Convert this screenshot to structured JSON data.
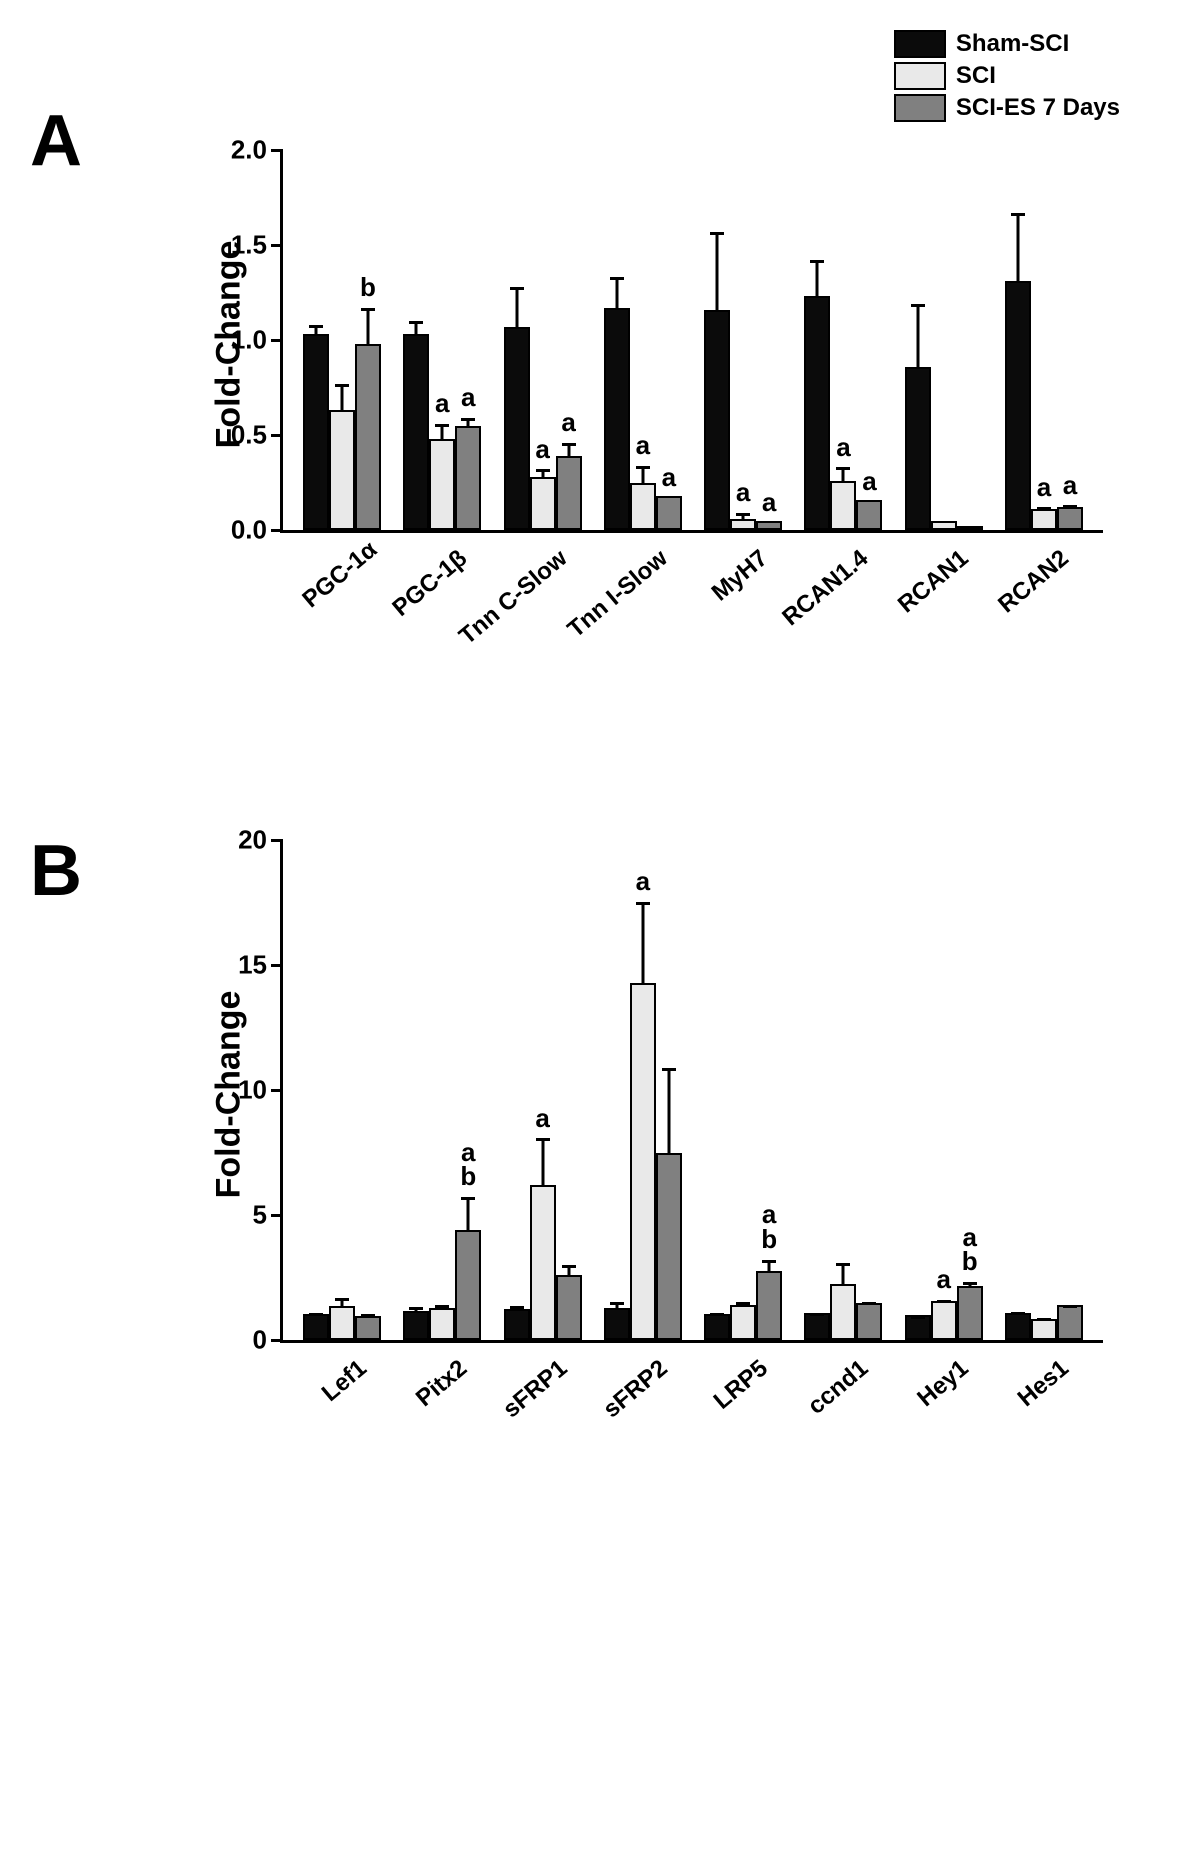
{
  "legend": {
    "items": [
      {
        "label": "Sham-SCI",
        "color": "#0b0b0b"
      },
      {
        "label": "SCI",
        "color": "#e9e9e9"
      },
      {
        "label": "SCI-ES 7 Days",
        "color": "#808080"
      }
    ]
  },
  "panelA": {
    "label": "A",
    "y_title": "Fold-Change",
    "ymax": 2.0,
    "yticks": [
      0.0,
      0.5,
      1.0,
      1.5,
      2.0
    ],
    "ytick_labels": [
      "0.0",
      "0.5",
      "1.0",
      "1.5",
      "2.0"
    ],
    "bar_colors": [
      "#0b0b0b",
      "#e9e9e9",
      "#808080"
    ],
    "categories": [
      "PGC-1α",
      "PGC-1β",
      "Tnn C-Slow",
      "Tnn I-Slow",
      "MyH7",
      "RCAN1.4",
      "RCAN1",
      "RCAN2"
    ],
    "series": [
      {
        "v": [
          1.03,
          0.63,
          0.98
        ],
        "e": [
          0.06,
          0.15,
          0.2
        ],
        "sig": [
          "",
          "",
          "b"
        ]
      },
      {
        "v": [
          1.03,
          0.48,
          0.55
        ],
        "e": [
          0.08,
          0.09,
          0.05
        ],
        "sig": [
          "",
          "a",
          "a"
        ]
      },
      {
        "v": [
          1.07,
          0.28,
          0.39
        ],
        "e": [
          0.22,
          0.05,
          0.08
        ],
        "sig": [
          "",
          "a",
          "a"
        ]
      },
      {
        "v": [
          1.17,
          0.25,
          0.18
        ],
        "e": [
          0.17,
          0.1,
          0.0
        ],
        "sig": [
          "",
          "a",
          "a"
        ]
      },
      {
        "v": [
          1.16,
          0.06,
          0.05
        ],
        "e": [
          0.42,
          0.04,
          0.0
        ],
        "sig": [
          "",
          "a",
          "a"
        ]
      },
      {
        "v": [
          1.23,
          0.26,
          0.16
        ],
        "e": [
          0.2,
          0.08,
          0.0
        ],
        "sig": [
          "",
          "a",
          "a"
        ]
      },
      {
        "v": [
          0.86,
          0.05,
          0.02
        ],
        "e": [
          0.34,
          0.0,
          0.0
        ],
        "sig": [
          "",
          "",
          ""
        ]
      },
      {
        "v": [
          1.31,
          0.11,
          0.12
        ],
        "e": [
          0.37,
          0.02,
          0.02
        ],
        "sig": [
          "",
          "a",
          "a"
        ]
      }
    ]
  },
  "panelB": {
    "label": "B",
    "y_title": "Fold-Change",
    "ymax": 20,
    "yticks": [
      0,
      5,
      10,
      15,
      20
    ],
    "ytick_labels": [
      "0",
      "5",
      "10",
      "15",
      "20"
    ],
    "bar_colors": [
      "#0b0b0b",
      "#e9e9e9",
      "#808080"
    ],
    "categories": [
      "Lef1",
      "Pitx2",
      "sFRP1",
      "sFRP2",
      "LRP5",
      "ccnd1",
      "Hey1",
      "Hes1"
    ],
    "series": [
      {
        "v": [
          1.05,
          1.35,
          0.98
        ],
        "e": [
          0.1,
          0.4,
          0.15
        ],
        "sig": [
          "",
          "",
          ""
        ]
      },
      {
        "v": [
          1.15,
          1.3,
          4.4
        ],
        "e": [
          0.25,
          0.2,
          1.4
        ],
        "sig": [
          "",
          "",
          "a\nb"
        ]
      },
      {
        "v": [
          1.25,
          6.2,
          2.6
        ],
        "e": [
          0.2,
          1.95,
          0.5
        ],
        "sig": [
          "",
          "a",
          ""
        ]
      },
      {
        "v": [
          1.3,
          14.3,
          7.5
        ],
        "e": [
          0.3,
          3.3,
          3.45
        ],
        "sig": [
          "",
          "a",
          ""
        ]
      },
      {
        "v": [
          1.05,
          1.4,
          2.75
        ],
        "e": [
          0.1,
          0.2,
          0.55
        ],
        "sig": [
          "",
          "",
          "a\nb"
        ]
      },
      {
        "v": [
          1.08,
          2.25,
          1.5
        ],
        "e": [
          0.1,
          0.9,
          0.1
        ],
        "sig": [
          "",
          "",
          ""
        ]
      },
      {
        "v": [
          1.0,
          1.55,
          2.15
        ],
        "e": [
          0.05,
          0.15,
          0.25
        ],
        "sig": [
          "",
          "a",
          "a\nb"
        ]
      },
      {
        "v": [
          1.1,
          0.85,
          1.4
        ],
        "e": [
          0.1,
          0.1,
          0.1
        ],
        "sig": [
          "",
          "",
          ""
        ]
      }
    ]
  },
  "layout": {
    "barWidth": 26,
    "groupGap": 30,
    "plotWidthA": 820,
    "plotHeightA": 380,
    "plotWidthB": 820,
    "plotHeightB": 500
  }
}
